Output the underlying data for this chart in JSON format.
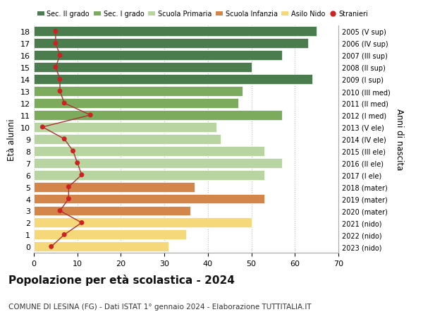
{
  "ages": [
    18,
    17,
    16,
    15,
    14,
    13,
    12,
    11,
    10,
    9,
    8,
    7,
    6,
    5,
    4,
    3,
    2,
    1,
    0
  ],
  "bar_values": [
    65,
    63,
    57,
    50,
    64,
    48,
    47,
    57,
    42,
    43,
    53,
    57,
    53,
    37,
    53,
    36,
    50,
    35,
    31
  ],
  "stranieri": [
    5,
    5,
    6,
    5,
    6,
    6,
    7,
    13,
    2,
    7,
    9,
    10,
    11,
    8,
    8,
    6,
    11,
    7,
    4
  ],
  "right_labels": [
    "2005 (V sup)",
    "2006 (IV sup)",
    "2007 (III sup)",
    "2008 (II sup)",
    "2009 (I sup)",
    "2010 (III med)",
    "2011 (II med)",
    "2012 (I med)",
    "2013 (V ele)",
    "2014 (IV ele)",
    "2015 (III ele)",
    "2016 (II ele)",
    "2017 (I ele)",
    "2018 (mater)",
    "2019 (mater)",
    "2020 (mater)",
    "2021 (nido)",
    "2022 (nido)",
    "2023 (nido)"
  ],
  "bar_colors": {
    "sec2": "#4a7c4e",
    "sec1": "#7dab5e",
    "primaria": "#b8d4a0",
    "infanzia": "#d4854a",
    "nido": "#f5d87a"
  },
  "age_school": {
    "sec2": [
      14,
      15,
      16,
      17,
      18
    ],
    "sec1": [
      11,
      12,
      13
    ],
    "primaria": [
      6,
      7,
      8,
      9,
      10
    ],
    "infanzia": [
      3,
      4,
      5
    ],
    "nido": [
      0,
      1,
      2
    ]
  },
  "stranieri_color": "#cc2222",
  "stranieri_line_color": "#aa3333",
  "title": "Popolazione per età scolastica - 2024",
  "subtitle": "COMUNE DI LESINA (FG) - Dati ISTAT 1° gennaio 2024 - Elaborazione TUTTITALIA.IT",
  "ylabel_left": "Età alunni",
  "ylabel_right": "Anni di nascita",
  "xlim": [
    0,
    70
  ],
  "legend_labels": [
    "Sec. II grado",
    "Sec. I grado",
    "Scuola Primaria",
    "Scuola Infanzia",
    "Asilo Nido",
    "Stranieri"
  ],
  "legend_colors": [
    "#4a7c4e",
    "#7dab5e",
    "#b8d4a0",
    "#d4854a",
    "#f5d87a",
    "#cc2222"
  ],
  "background_color": "#ffffff",
  "grid_color": "#bbbbbb"
}
